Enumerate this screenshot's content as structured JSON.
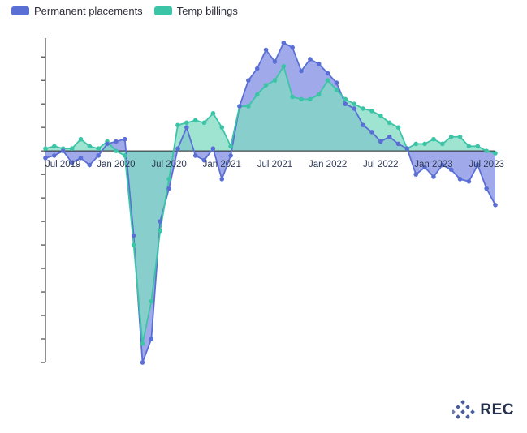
{
  "legend": {
    "series1": "Permanent placements",
    "series2": "Temp billings"
  },
  "colors": {
    "permanent_line": "#5a6fd6",
    "permanent_fill": "#8f9be6",
    "temp_line": "#3cc4a6",
    "temp_fill": "#7fd9c2",
    "overlap_fill": "#5fb8c8",
    "axis": "#222222",
    "logo_dots": "#4a5d9c"
  },
  "logo": {
    "text": "REC"
  },
  "chart_data": {
    "type": "area",
    "x": [
      "2019-05",
      "2019-06",
      "2019-07",
      "2019-08",
      "2019-09",
      "2019-10",
      "2019-11",
      "2019-12",
      "2020-01",
      "2020-02",
      "2020-03",
      "2020-04",
      "2020-05",
      "2020-06",
      "2020-07",
      "2020-08",
      "2020-09",
      "2020-10",
      "2020-11",
      "2020-12",
      "2021-01",
      "2021-02",
      "2021-03",
      "2021-04",
      "2021-05",
      "2021-06",
      "2021-07",
      "2021-08",
      "2021-09",
      "2021-10",
      "2021-11",
      "2021-12",
      "2022-01",
      "2022-02",
      "2022-03",
      "2022-04",
      "2022-05",
      "2022-06",
      "2022-07",
      "2022-08",
      "2022-09",
      "2022-10",
      "2022-11",
      "2022-12",
      "2023-01",
      "2023-02",
      "2023-03",
      "2023-04",
      "2023-05",
      "2023-06",
      "2023-07",
      "2023-08"
    ],
    "x_tick_labels": [
      "Jul 2019",
      "Jan 2020",
      "Jul 2020",
      "Jan 2021",
      "Jul 2021",
      "Jan 2022",
      "Jul 2022",
      "Jan 2023",
      "Jul 2023"
    ],
    "x_tick_months": [
      "2019-07",
      "2020-01",
      "2020-07",
      "2021-01",
      "2021-07",
      "2022-01",
      "2022-07",
      "2023-01",
      "2023-07"
    ],
    "ylim": [
      -45,
      24
    ],
    "series": [
      {
        "name": "Permanent placements",
        "values": [
          -1.5,
          -1,
          0,
          -2.5,
          -1.5,
          -3,
          -1,
          1.5,
          2,
          2.5,
          -18,
          -45,
          -40,
          -15,
          -8,
          0.5,
          5,
          -1,
          -2,
          0.5,
          -6,
          -1,
          9.5,
          15,
          17.5,
          21.5,
          19,
          23,
          22,
          17,
          19.5,
          18.5,
          16.5,
          14.5,
          10,
          9,
          5.5,
          4,
          2,
          3,
          1.5,
          0.5,
          -5,
          -3.5,
          -5.5,
          -3,
          -4,
          -6,
          -6.5,
          -3,
          -8,
          -11.5
        ]
      },
      {
        "name": "Temp billings",
        "values": [
          0.5,
          1,
          0.5,
          0.5,
          2.5,
          1,
          0.5,
          2,
          0,
          -1,
          -20,
          -41,
          -32,
          -17,
          -6,
          5.5,
          6,
          6.5,
          6,
          8,
          5,
          1,
          9.5,
          9.5,
          12,
          14,
          15,
          18,
          11.5,
          11,
          11,
          12,
          15,
          13,
          11,
          10,
          9,
          8.5,
          7.5,
          6,
          5,
          0.5,
          1.5,
          1.5,
          2.5,
          1.5,
          3,
          3,
          1,
          1,
          0,
          -0.5
        ]
      }
    ]
  }
}
